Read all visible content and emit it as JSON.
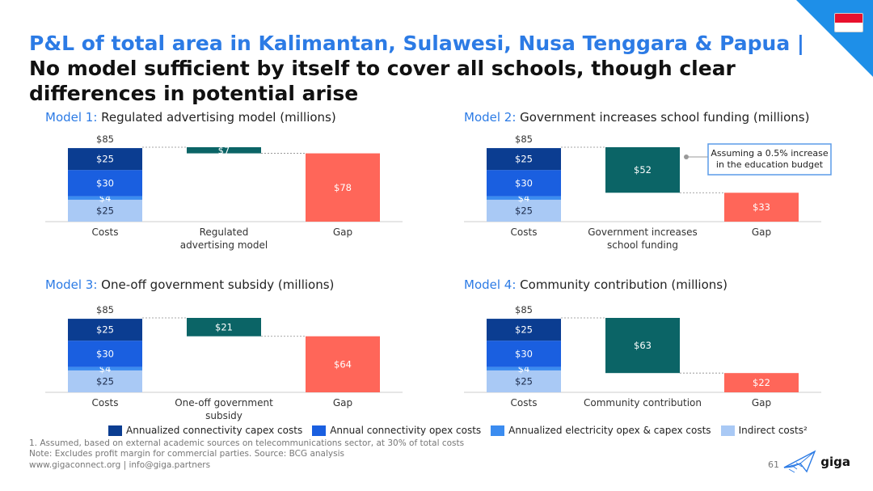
{
  "header": {
    "title_highlight": "P&L of total area in Kalimantan, Sulawesi, Nusa Tenggara & Papua |",
    "title_rest": " No model sufficient by itself to cover all schools, though clear differences in potential arise"
  },
  "colors": {
    "capex": "#0b3d91",
    "opex": "#1a5fe0",
    "electricity": "#3b8cf0",
    "indirect": "#a9c9f5",
    "model": "#0b6466",
    "gap": "#ff6659",
    "accent": "#2c7be5",
    "flag_red": "#e8112d"
  },
  "legend": [
    {
      "label": "Annualized connectivity capex costs",
      "color": "#0b3d91"
    },
    {
      "label": "Annual connectivity opex costs",
      "color": "#1a5fe0"
    },
    {
      "label": "Annualized electricity opex & capex costs",
      "color": "#3b8cf0"
    },
    {
      "label": "Indirect costs²",
      "color": "#a9c9f5"
    }
  ],
  "chart_data": [
    {
      "type": "bar",
      "model_label": "Model 1:",
      "title": " Regulated advertising model (millions)",
      "categories": [
        "Costs",
        "Regulated advertising model",
        "Gap"
      ],
      "category_lines": [
        [
          "Costs"
        ],
        [
          "Regulated",
          "advertising model"
        ],
        [
          "Gap"
        ]
      ],
      "total": 85,
      "total_label": "$85",
      "cost_stack": [
        {
          "name": "Indirect costs",
          "value": 25,
          "label": "$25"
        },
        {
          "name": "Annualized electricity opex & capex costs",
          "value": 4,
          "label": "$4"
        },
        {
          "name": "Annual connectivity opex costs",
          "value": 30,
          "label": "$30"
        },
        {
          "name": "Annualized connectivity capex costs",
          "value": 25,
          "label": "$25"
        }
      ],
      "model_value": 7,
      "model_label_value": "$7",
      "gap_value": 78,
      "gap_label": "$78"
    },
    {
      "type": "bar",
      "model_label": "Model 2:",
      "title": " Government increases school funding  (millions)",
      "categories": [
        "Costs",
        "Government increases school funding",
        "Gap"
      ],
      "category_lines": [
        [
          "Costs"
        ],
        [
          "Government increases",
          "school funding"
        ],
        [
          "Gap"
        ]
      ],
      "total": 85,
      "total_label": "$85",
      "cost_stack": [
        {
          "name": "Indirect costs",
          "value": 25,
          "label": "$25"
        },
        {
          "name": "Annualized electricity opex & capex costs",
          "value": 4,
          "label": "$4"
        },
        {
          "name": "Annual connectivity opex costs",
          "value": 30,
          "label": "$30"
        },
        {
          "name": "Annualized connectivity capex costs",
          "value": 25,
          "label": "$25"
        }
      ],
      "model_value": 52,
      "model_label_value": "$52",
      "gap_value": 33,
      "gap_label": "$33",
      "annotation": [
        "Assuming a 0.5% increase",
        "in the education budget"
      ]
    },
    {
      "type": "bar",
      "model_label": "Model 3:",
      "title": " One-off government subsidy (millions)",
      "categories": [
        "Costs",
        "One-off government subsidy",
        "Gap"
      ],
      "category_lines": [
        [
          "Costs"
        ],
        [
          "One-off government",
          "subsidy"
        ],
        [
          "Gap"
        ]
      ],
      "total": 85,
      "total_label": "$85",
      "cost_stack": [
        {
          "name": "Indirect costs",
          "value": 25,
          "label": "$25"
        },
        {
          "name": "Annualized electricity opex & capex costs",
          "value": 4,
          "label": "$4"
        },
        {
          "name": "Annual connectivity opex costs",
          "value": 30,
          "label": "$30"
        },
        {
          "name": "Annualized connectivity capex costs",
          "value": 25,
          "label": "$25"
        }
      ],
      "model_value": 21,
      "model_label_value": "$21",
      "gap_value": 64,
      "gap_label": "$64"
    },
    {
      "type": "bar",
      "model_label": "Model 4:",
      "title": " Community contribution (millions)",
      "categories": [
        "Costs",
        "Community contribution",
        "Gap"
      ],
      "category_lines": [
        [
          "Costs"
        ],
        [
          "Community contribution"
        ],
        [
          "Gap"
        ]
      ],
      "total": 85,
      "total_label": "$85",
      "cost_stack": [
        {
          "name": "Indirect costs",
          "value": 25,
          "label": "$25"
        },
        {
          "name": "Annualized electricity opex & capex costs",
          "value": 4,
          "label": "$4"
        },
        {
          "name": "Annual connectivity opex costs",
          "value": 30,
          "label": "$30"
        },
        {
          "name": "Annualized connectivity capex costs",
          "value": 25,
          "label": "$25"
        }
      ],
      "model_value": 63,
      "model_label_value": "$63",
      "gap_value": 22,
      "gap_label": "$22"
    }
  ],
  "footnotes": {
    "note1": "1.   Assumed, based on external academic sources on telecommunications sector, at 30% of total costs",
    "note2": "Note: Excludes profit margin for commercial parties. Source: BCG analysis",
    "links": "www.gigaconnect.org  |  info@giga.partners"
  },
  "page_number": "61",
  "logo_text": "giga"
}
